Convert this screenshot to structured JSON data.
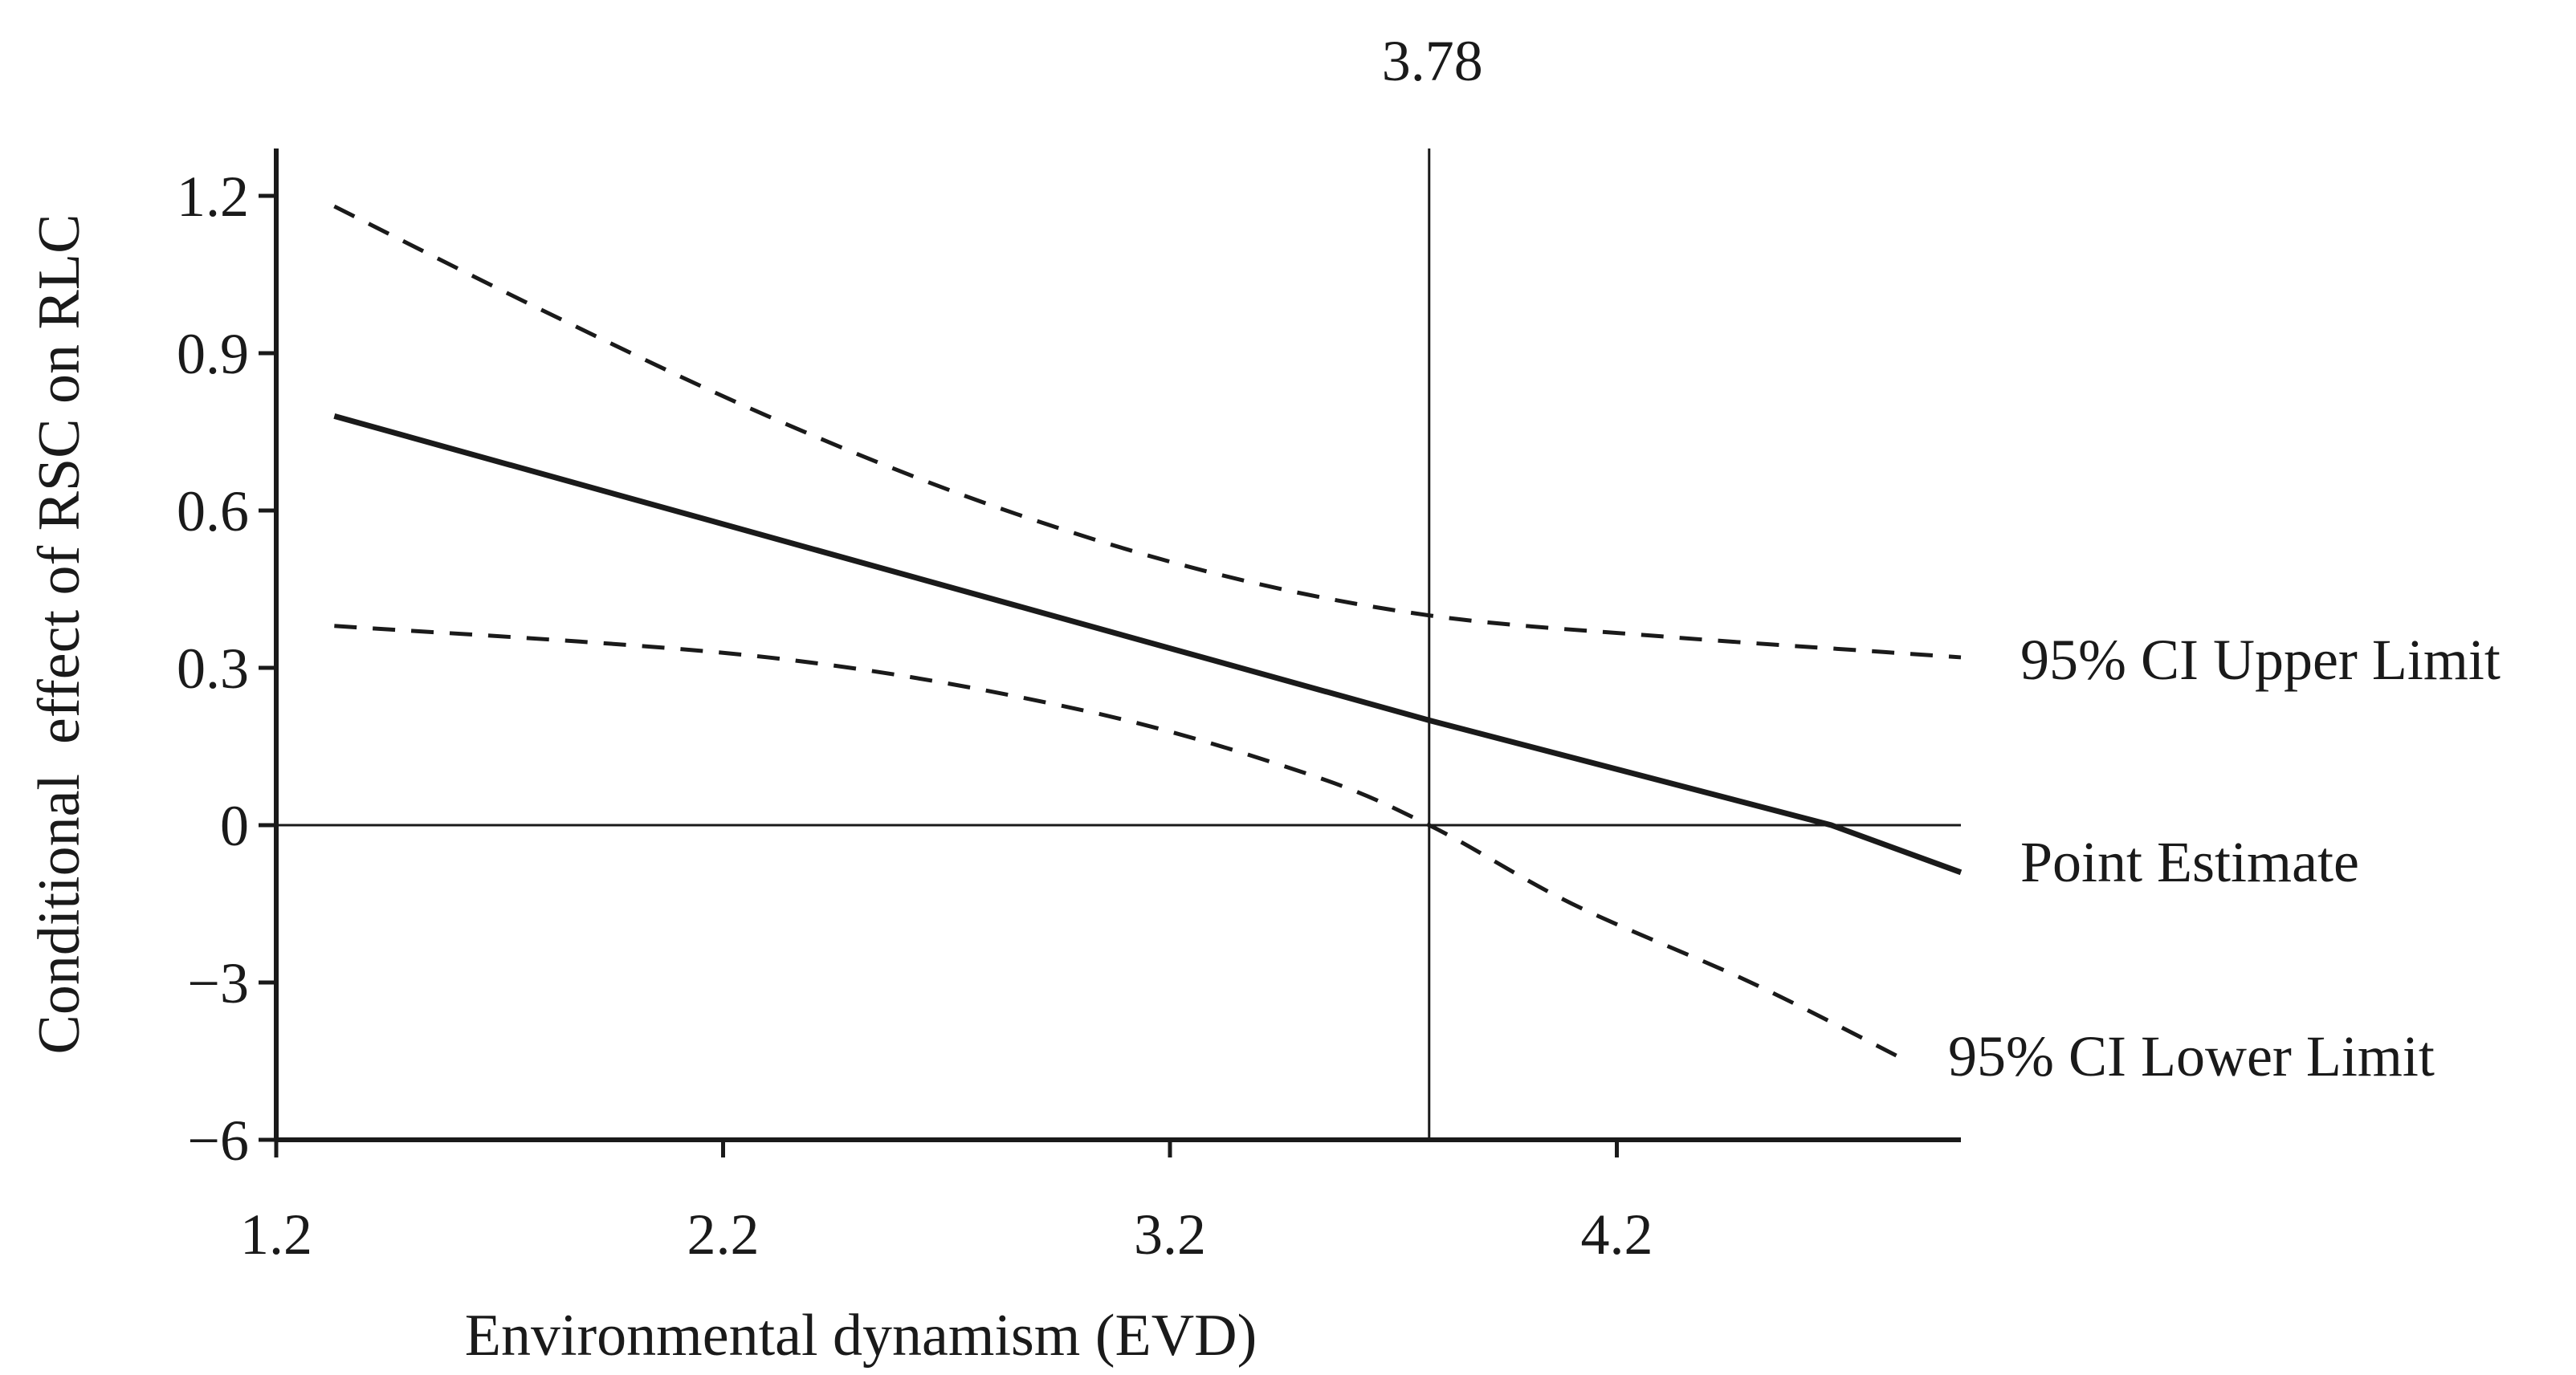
{
  "chart_data": {
    "type": "line",
    "title": "",
    "xlabel": "Environmental dynamism (EVD)",
    "ylabel": "Conditional  effect of RSC on RLC",
    "x_ticks": [
      "1.2",
      "2.2",
      "3.2",
      "4.2"
    ],
    "y_ticks": [
      "1.2",
      "0.9",
      "0.6",
      "0.3",
      "0",
      "−3",
      "−6"
    ],
    "xlim": [
      1.2,
      4.97
    ],
    "y_scale_note": "non-linear axis: tick labels 1.2, 0.9, 0.6, 0.3, 0, −3, −6 are evenly spaced",
    "reference_line": {
      "x": 3.78,
      "label": "3.78"
    },
    "zero_line": 0,
    "series": [
      {
        "name": "95% CI Upper Limit",
        "style": "dashed",
        "x": [
          1.33,
          1.8,
          2.3,
          2.8,
          3.3,
          3.78,
          4.3,
          4.8,
          4.97
        ],
        "y": [
          1.18,
          0.98,
          0.78,
          0.61,
          0.48,
          0.4,
          0.36,
          0.33,
          0.32
        ]
      },
      {
        "name": "Point Estimate",
        "style": "solid",
        "x": [
          1.33,
          3.78,
          4.68,
          4.97
        ],
        "y": [
          0.78,
          0.2,
          0,
          -0.9
        ]
      },
      {
        "name": "95% CI Lower Limit",
        "style": "dashed",
        "x": [
          1.33,
          2.3,
          3.0,
          3.5,
          3.78,
          4.1,
          4.5,
          4.85
        ],
        "y": [
          0.38,
          0.32,
          0.22,
          0.1,
          0,
          -1.5,
          -3.0,
          -4.5
        ]
      }
    ],
    "series_labels": {
      "upper": "95% CI Upper Limit",
      "point": "Point Estimate",
      "lower": "95% CI Lower Limit"
    },
    "grid": false,
    "legend": "inline labels at right"
  }
}
